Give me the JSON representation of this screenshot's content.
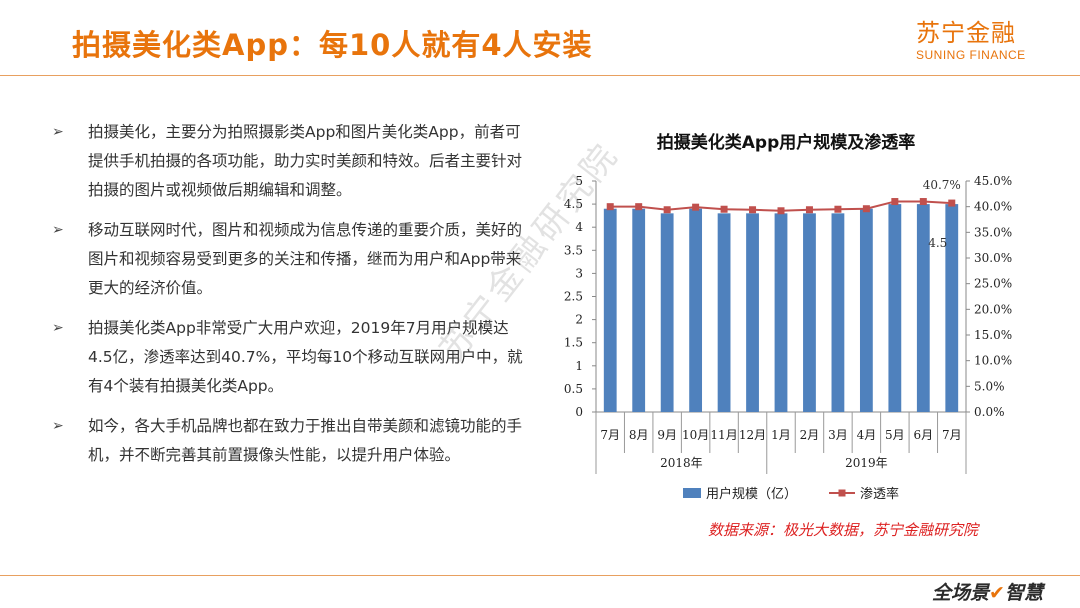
{
  "header": {
    "title": "拍摄美化类App：每10人就有4人安装",
    "logo_cn": "苏宁金融",
    "logo_en": "SUNING FINANCE"
  },
  "bullets": [
    "拍摄美化，主要分为拍照摄影类App和图片美化类App，前者可提供手机拍摄的各项功能，助力实时美颜和特效。后者主要针对拍摄的图片或视频做后期编辑和调整。",
    "移动互联网时代，图片和视频成为信息传递的重要介质，美好的图片和视频容易受到更多的关注和传播，继而为用户和App带来更大的经济价值。",
    "拍摄美化类App非常受广大用户欢迎，2019年7月用户规模达4.5亿，渗透率达到40.7%，平均每10个移动互联网用户中，就有4个装有拍摄美化类App。",
    "如今，各大手机品牌也都在致力于推出自带美颜和滤镜功能的手机，并不断完善其前置摄像头性能，以提升用户体验。"
  ],
  "source": "数据来源：极光大数据，苏宁金融研究院",
  "watermark": "苏宁金融研究院",
  "footer": {
    "brand": "全场景",
    "brand_check": "✔",
    "brand_tail": "智慧"
  },
  "colors": {
    "accent": "#e8740c",
    "bar": "#4f81bd",
    "line": "#c0504d",
    "source": "#dd2222"
  },
  "chart_data": {
    "type": "bar",
    "title": "拍摄美化类App用户规模及渗透率",
    "categories": [
      "7月",
      "8月",
      "9月",
      "10月",
      "11月",
      "12月",
      "1月",
      "2月",
      "3月",
      "4月",
      "5月",
      "6月",
      "7月"
    ],
    "groups": [
      {
        "label": "2018年",
        "count": 6
      },
      {
        "label": "2019年",
        "count": 7
      }
    ],
    "series": [
      {
        "name": "用户规模（亿）",
        "axis": "left",
        "kind": "bar",
        "values": [
          4.4,
          4.4,
          4.3,
          4.4,
          4.3,
          4.3,
          4.3,
          4.3,
          4.3,
          4.4,
          4.5,
          4.5,
          4.5
        ]
      },
      {
        "name": "渗透率",
        "axis": "right",
        "kind": "line",
        "values": [
          40.0,
          40.0,
          39.4,
          39.9,
          39.5,
          39.4,
          39.2,
          39.4,
          39.5,
          39.6,
          41.0,
          41.0,
          40.7
        ]
      }
    ],
    "annotations": {
      "last_bar_label": "4.5",
      "last_point_label": "40.7%"
    },
    "y_left": {
      "min": 0,
      "max": 5,
      "ticks": [
        "0",
        "0.5",
        "1",
        "1.5",
        "2",
        "2.5",
        "3",
        "3.5",
        "4",
        "4.5",
        "5"
      ]
    },
    "y_right": {
      "min": 0,
      "max": 45,
      "ticks": [
        "0.0%",
        "5.0%",
        "10.0%",
        "15.0%",
        "20.0%",
        "25.0%",
        "30.0%",
        "35.0%",
        "40.0%",
        "45.0%"
      ]
    },
    "legend_position": "bottom"
  }
}
